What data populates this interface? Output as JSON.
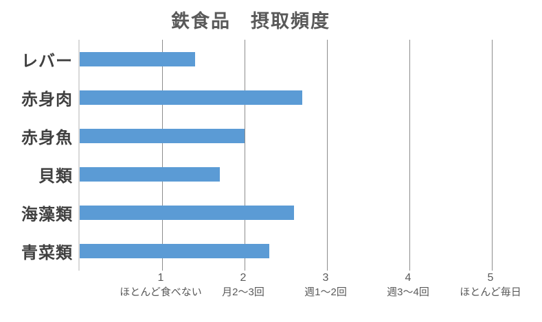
{
  "colors": {
    "bar": "#5b9bd5",
    "gridline": "#8c8c8c",
    "axis_line": "#d9d9d9",
    "title_text": "#595959",
    "category_text": "#404040",
    "tick_text": "#595959",
    "background": "#ffffff"
  },
  "chart_data": {
    "type": "bar",
    "orientation": "horizontal",
    "title": "鉄食品　摂取頻度",
    "categories": [
      "レバー",
      "赤身肉",
      "赤身魚",
      "貝類",
      "海藻類",
      "青菜類"
    ],
    "values": [
      1.4,
      2.7,
      2.0,
      1.7,
      2.6,
      2.3
    ],
    "xlabel": "",
    "ylabel": "",
    "xlim": [
      0,
      5.5
    ],
    "grid": true,
    "legend": false,
    "xticks": [
      {
        "value": 1,
        "label": "1",
        "sublabel": "ほとんど食べない"
      },
      {
        "value": 2,
        "label": "2",
        "sublabel": "月2〜3回"
      },
      {
        "value": 3,
        "label": "3",
        "sublabel": "週1〜2回"
      },
      {
        "value": 4,
        "label": "4",
        "sublabel": "週3〜4回"
      },
      {
        "value": 5,
        "label": "5",
        "sublabel": "ほとんど毎日"
      }
    ]
  }
}
